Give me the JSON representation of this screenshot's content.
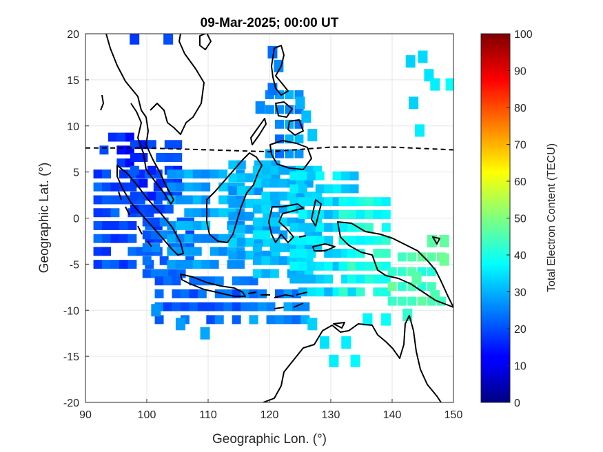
{
  "title": "09-Mar-2025; 00:00 UT",
  "chart_data": {
    "type": "heatmap",
    "title": "09-Mar-2025; 00:00 UT",
    "xlabel": "Geographic Lon. (°)",
    "ylabel": "Geographic Lat. (°)",
    "xlim": [
      90,
      150
    ],
    "ylim": [
      -20,
      20
    ],
    "xticks": [
      "90",
      "100",
      "110",
      "120",
      "130",
      "140",
      "150"
    ],
    "yticks": [
      "20",
      "15",
      "10",
      "5",
      "0",
      "-5",
      "-10",
      "-15",
      "-20"
    ],
    "grid": true,
    "colorbar": {
      "label": "Total Electron Content (TECU)",
      "range": [
        0,
        100
      ],
      "ticks": [
        "100",
        "90",
        "80",
        "70",
        "60",
        "50",
        "40",
        "30",
        "20",
        "10",
        "0"
      ],
      "colormap": "jet"
    },
    "magnetic_equator": [
      [
        90,
        7.6
      ],
      [
        100,
        7.6
      ],
      [
        110,
        7.4
      ],
      [
        120,
        7.2
      ],
      [
        130,
        7.7
      ],
      [
        140,
        7.7
      ],
      [
        150,
        7.4
      ]
    ],
    "regions": [
      {
        "lon": [
          93,
          98
        ],
        "lat": [
          6,
          10
        ],
        "tec": 16,
        "step": 1.4
      },
      {
        "lon": [
          92,
          102
        ],
        "lat": [
          -5,
          6
        ],
        "tec": 20,
        "step": 1.4
      },
      {
        "lon": [
          98,
          106
        ],
        "lat": [
          1,
          8
        ],
        "tec": 18,
        "step": 1.4
      },
      {
        "lon": [
          100,
          108
        ],
        "lat": [
          -6,
          0
        ],
        "tec": 23,
        "step": 1.4
      },
      {
        "lon": [
          102,
          118
        ],
        "lat": [
          -11,
          -6
        ],
        "tec": 22,
        "step": 1.4
      },
      {
        "lon": [
          116,
          126
        ],
        "lat": [
          -11,
          -7
        ],
        "tec": 26,
        "step": 1.4
      },
      {
        "lon": [
          104,
          116
        ],
        "lat": [
          -5,
          5
        ],
        "tec": 29,
        "step": 1.4
      },
      {
        "lon": [
          114,
          122
        ],
        "lat": [
          -4,
          7
        ],
        "tec": 30,
        "step": 1.4
      },
      {
        "lon": [
          118,
          128
        ],
        "lat": [
          -6,
          6
        ],
        "tec": 32,
        "step": 1.4
      },
      {
        "lon": [
          124,
          134
        ],
        "lat": [
          -8,
          5
        ],
        "tec": 34,
        "step": 1.4
      },
      {
        "lon": [
          132,
          140
        ],
        "lat": [
          -8,
          3
        ],
        "tec": 40,
        "step": 1.4
      },
      {
        "lon": [
          120,
          126
        ],
        "lat": [
          7,
          14
        ],
        "tec": 27,
        "step": 1.6
      },
      {
        "lon": [
          140,
          148
        ],
        "lat": [
          -9,
          -3
        ],
        "tec": 44,
        "step": 1.6
      }
    ],
    "cells": [
      {
        "lon": 98,
        "lat": 19.5,
        "tec": 18
      },
      {
        "lon": 103.5,
        "lat": 19.5,
        "tec": 20
      },
      {
        "lon": 121.5,
        "lat": 16.5,
        "tec": 26
      },
      {
        "lon": 120.5,
        "lat": 18,
        "tec": 23
      },
      {
        "lon": 120.5,
        "lat": 14,
        "tec": 24
      },
      {
        "lon": 118.5,
        "lat": 12,
        "tec": 26
      },
      {
        "lon": 125,
        "lat": 12.5,
        "tec": 30
      },
      {
        "lon": 126,
        "lat": 11,
        "tec": 31
      },
      {
        "lon": 127,
        "lat": 9,
        "tec": 32
      },
      {
        "lon": 143,
        "lat": 17,
        "tec": 33
      },
      {
        "lon": 145,
        "lat": 17.5,
        "tec": 34
      },
      {
        "lon": 146,
        "lat": 15.5,
        "tec": 35
      },
      {
        "lon": 147,
        "lat": 14.5,
        "tec": 36
      },
      {
        "lon": 149.5,
        "lat": 14.5,
        "tec": 38
      },
      {
        "lon": 143.5,
        "lat": 12.5,
        "tec": 33
      },
      {
        "lon": 144.5,
        "lat": 9.5,
        "tec": 36
      },
      {
        "lon": 101.5,
        "lat": -10,
        "tec": 27
      },
      {
        "lon": 105.5,
        "lat": -11.5,
        "tec": 28
      },
      {
        "lon": 109.5,
        "lat": -12.5,
        "tec": 29
      },
      {
        "lon": 127,
        "lat": -11.5,
        "tec": 33
      },
      {
        "lon": 129,
        "lat": -13.5,
        "tec": 35
      },
      {
        "lon": 130.5,
        "lat": -15.5,
        "tec": 36
      },
      {
        "lon": 132.5,
        "lat": -13.5,
        "tec": 36
      },
      {
        "lon": 134,
        "lat": -15.5,
        "tec": 37
      },
      {
        "lon": 136,
        "lat": -11,
        "tec": 37
      },
      {
        "lon": 139,
        "lat": -11,
        "tec": 38
      },
      {
        "lon": 142.5,
        "lat": -10.5,
        "tec": 42
      },
      {
        "lon": 146.5,
        "lat": -2.5,
        "tec": 46
      },
      {
        "lon": 148.5,
        "lat": -4.5,
        "tec": 48
      },
      {
        "lon": 148.5,
        "lat": -2.5,
        "tec": 47
      },
      {
        "lon": 147,
        "lat": -8.5,
        "tec": 45
      },
      {
        "lon": 144,
        "lat": -6.5,
        "tec": 46
      }
    ]
  },
  "icons": {
    "dashed_line": "magnetic-equator-line",
    "coastline": "coastline-outline"
  }
}
